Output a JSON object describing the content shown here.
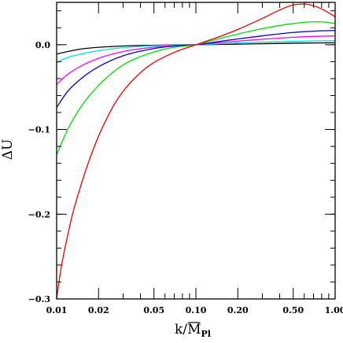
{
  "chart_data": {
    "type": "line",
    "xlabel": {
      "main": "k/",
      "symbol": "M",
      "sub": "Pl"
    },
    "ylabel": "ΔU",
    "xscale": "log",
    "xlim": [
      0.01,
      1.0
    ],
    "ylim": [
      -0.3,
      0.05
    ],
    "xticks": [
      {
        "value": 0.01,
        "label": "0.01"
      },
      {
        "value": 0.02,
        "label": "0.02"
      },
      {
        "value": 0.05,
        "label": "0.05"
      },
      {
        "value": 0.1,
        "label": "0.10"
      },
      {
        "value": 0.2,
        "label": "0.20"
      },
      {
        "value": 0.5,
        "label": "0.50"
      },
      {
        "value": 1.0,
        "label": "1.00"
      }
    ],
    "yticks": [
      {
        "value": 0.0,
        "label": "0.0"
      },
      {
        "value": -0.1,
        "label": "−0.1"
      },
      {
        "value": -0.2,
        "label": "−0.2"
      },
      {
        "value": -0.3,
        "label": "−0.3"
      }
    ],
    "grid": false,
    "series": [
      {
        "color": "#000000",
        "x": [
          0.01,
          0.012,
          0.015,
          0.02,
          0.03,
          0.05,
          0.07,
          0.1,
          0.15,
          0.2,
          0.3,
          0.5,
          0.7,
          1.0
        ],
        "y": [
          -0.011,
          -0.008,
          -0.005,
          -0.003,
          -0.0015,
          -0.0006,
          -0.0002,
          0.0,
          0.0004,
          0.0007,
          0.0012,
          0.0018,
          0.0021,
          0.0023
        ]
      },
      {
        "color": "#00e0e0",
        "x": [
          0.01,
          0.012,
          0.015,
          0.02,
          0.03,
          0.05,
          0.07,
          0.1,
          0.15,
          0.2,
          0.3,
          0.5,
          0.7,
          1.0
        ],
        "y": [
          -0.021,
          -0.015,
          -0.011,
          -0.007,
          -0.0035,
          -0.0012,
          -0.0004,
          0.0,
          0.0012,
          0.002,
          0.003,
          0.004,
          0.0045,
          0.0048
        ]
      },
      {
        "color": "#ff00ff",
        "x": [
          0.01,
          0.012,
          0.015,
          0.02,
          0.03,
          0.05,
          0.07,
          0.1,
          0.15,
          0.2,
          0.3,
          0.5,
          0.7,
          1.0
        ],
        "y": [
          -0.047,
          -0.035,
          -0.025,
          -0.016,
          -0.008,
          -0.0028,
          -0.001,
          0.0,
          0.0025,
          0.0042,
          0.0065,
          0.0088,
          0.0098,
          0.0105
        ]
      },
      {
        "color": "#0000cc",
        "x": [
          0.01,
          0.012,
          0.015,
          0.02,
          0.03,
          0.05,
          0.07,
          0.1,
          0.15,
          0.2,
          0.3,
          0.5,
          0.7,
          1.0
        ],
        "y": [
          -0.074,
          -0.055,
          -0.04,
          -0.026,
          -0.013,
          -0.0045,
          -0.0015,
          0.0,
          0.004,
          0.0068,
          0.0105,
          0.0145,
          0.016,
          0.0168
        ]
      },
      {
        "color": "#00dd00",
        "x": [
          0.01,
          0.012,
          0.015,
          0.02,
          0.03,
          0.05,
          0.07,
          0.1,
          0.15,
          0.2,
          0.3,
          0.5,
          0.7,
          0.8,
          1.0
        ],
        "y": [
          -0.13,
          -0.1,
          -0.073,
          -0.048,
          -0.024,
          -0.0085,
          -0.003,
          0.0,
          0.0075,
          0.0125,
          0.019,
          0.025,
          0.027,
          0.027,
          0.025
        ]
      },
      {
        "color": "#ee0000",
        "x": [
          0.01,
          0.0105,
          0.011,
          0.012,
          0.013,
          0.015,
          0.017,
          0.02,
          0.025,
          0.03,
          0.04,
          0.05,
          0.07,
          0.1,
          0.15,
          0.2,
          0.3,
          0.4,
          0.5,
          0.6,
          0.7,
          0.85,
          1.0
        ],
        "y": [
          -0.3,
          -0.275,
          -0.255,
          -0.225,
          -0.2,
          -0.165,
          -0.138,
          -0.108,
          -0.075,
          -0.055,
          -0.033,
          -0.021,
          -0.009,
          0.0,
          0.01,
          0.018,
          0.031,
          0.041,
          0.047,
          0.048,
          0.046,
          0.04,
          0.033
        ]
      }
    ]
  }
}
